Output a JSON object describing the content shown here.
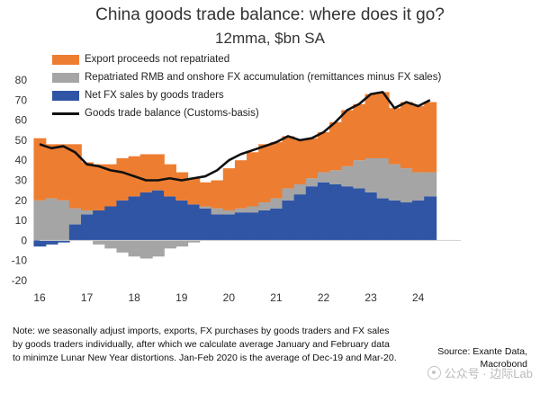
{
  "title": "China goods trade balance: where does it go?",
  "subtitle": "12mma, $bn SA",
  "legend": [
    {
      "label": "Export proceeds not repatriated",
      "color": "#ED7D31",
      "kind": "area"
    },
    {
      "label": "Repatriated RMB and onshore FX accumulation (remittances minus FX sales)",
      "color": "#A5A5A5",
      "kind": "area"
    },
    {
      "label": "Net FX sales by goods traders",
      "color": "#2F55A4",
      "kind": "area"
    },
    {
      "label": "Goods trade balance (Customs-basis)",
      "color": "#111111",
      "kind": "line"
    }
  ],
  "note": [
    "Note: we seasonally adjust imports, exports, FX purchases by goods traders and FX sales",
    "by goods traders individually, after which we calculate average January and February data",
    "to minimze Lunar New Year distortions. Jan-Feb 2020 is the average of Dec-19 and Mar-20."
  ],
  "source": [
    "Source: Exante Data,",
    "Macrobond"
  ],
  "watermark": "公众号 · 边际Lab",
  "chart_data": {
    "type": "area",
    "stacked": true,
    "x": [
      2016.0,
      2016.25,
      2016.5,
      2016.75,
      2017.0,
      2017.25,
      2017.5,
      2017.75,
      2018.0,
      2018.25,
      2018.5,
      2018.75,
      2019.0,
      2019.25,
      2019.5,
      2019.75,
      2020.0,
      2020.25,
      2020.5,
      2020.75,
      2021.0,
      2021.25,
      2021.5,
      2021.75,
      2022.0,
      2022.25,
      2022.5,
      2022.75,
      2023.0,
      2023.25,
      2023.5,
      2023.75,
      2024.0,
      2024.25
    ],
    "xlim": [
      2016,
      2024.9
    ],
    "xticks": [
      {
        "v": 2016,
        "label": "16"
      },
      {
        "v": 2017,
        "label": "17"
      },
      {
        "v": 2018,
        "label": "18"
      },
      {
        "v": 2019,
        "label": "19"
      },
      {
        "v": 2020,
        "label": "20"
      },
      {
        "v": 2021,
        "label": "21"
      },
      {
        "v": 2022,
        "label": "22"
      },
      {
        "v": 2023,
        "label": "23"
      },
      {
        "v": 2024,
        "label": "24"
      }
    ],
    "ylim": [
      -20,
      80
    ],
    "yticks": [
      -20,
      -10,
      0,
      10,
      20,
      30,
      40,
      50,
      60,
      70,
      80
    ],
    "grid": false,
    "legend_position": "top-left",
    "series": [
      {
        "name": "Net FX sales by goods traders",
        "color": "#2F55A4",
        "values": [
          -3,
          -2,
          -1,
          8,
          13,
          15,
          17,
          20,
          22,
          24,
          25,
          22,
          20,
          18,
          16,
          13,
          13,
          14,
          14,
          15,
          16,
          20,
          23,
          27,
          29,
          28,
          27,
          26,
          24,
          21,
          20,
          19,
          20,
          22
        ]
      },
      {
        "name": "Repatriated RMB and onshore FX accumulation (remittances minus FX sales)",
        "color": "#A5A5A5",
        "values": [
          20,
          21,
          20,
          8,
          2,
          -2,
          -4,
          -6,
          -8,
          -9,
          -8,
          -4,
          -3,
          -1,
          1,
          3,
          2,
          2,
          3,
          4,
          5,
          6,
          5,
          4,
          5,
          7,
          10,
          14,
          17,
          20,
          18,
          17,
          14,
          12
        ]
      },
      {
        "name": "Export proceeds not repatriated",
        "color": "#ED7D31",
        "values": [
          31,
          27,
          28,
          32,
          24,
          23,
          21,
          21,
          20,
          19,
          18,
          16,
          14,
          13,
          12,
          14,
          21,
          24,
          27,
          29,
          28,
          26,
          22,
          20,
          20,
          24,
          28,
          28,
          32,
          33,
          28,
          33,
          33,
          35
        ]
      },
      {
        "name": "Goods trade balance (Customs-basis)",
        "color": "#111111",
        "kind": "line",
        "values": [
          48,
          46,
          47,
          44,
          38,
          37,
          35,
          34,
          32,
          30,
          30,
          31,
          30,
          31,
          32,
          35,
          40,
          43,
          45,
          47,
          49,
          52,
          50,
          51,
          54,
          59,
          65,
          68,
          73,
          74,
          66,
          69,
          67,
          70
        ]
      }
    ]
  }
}
